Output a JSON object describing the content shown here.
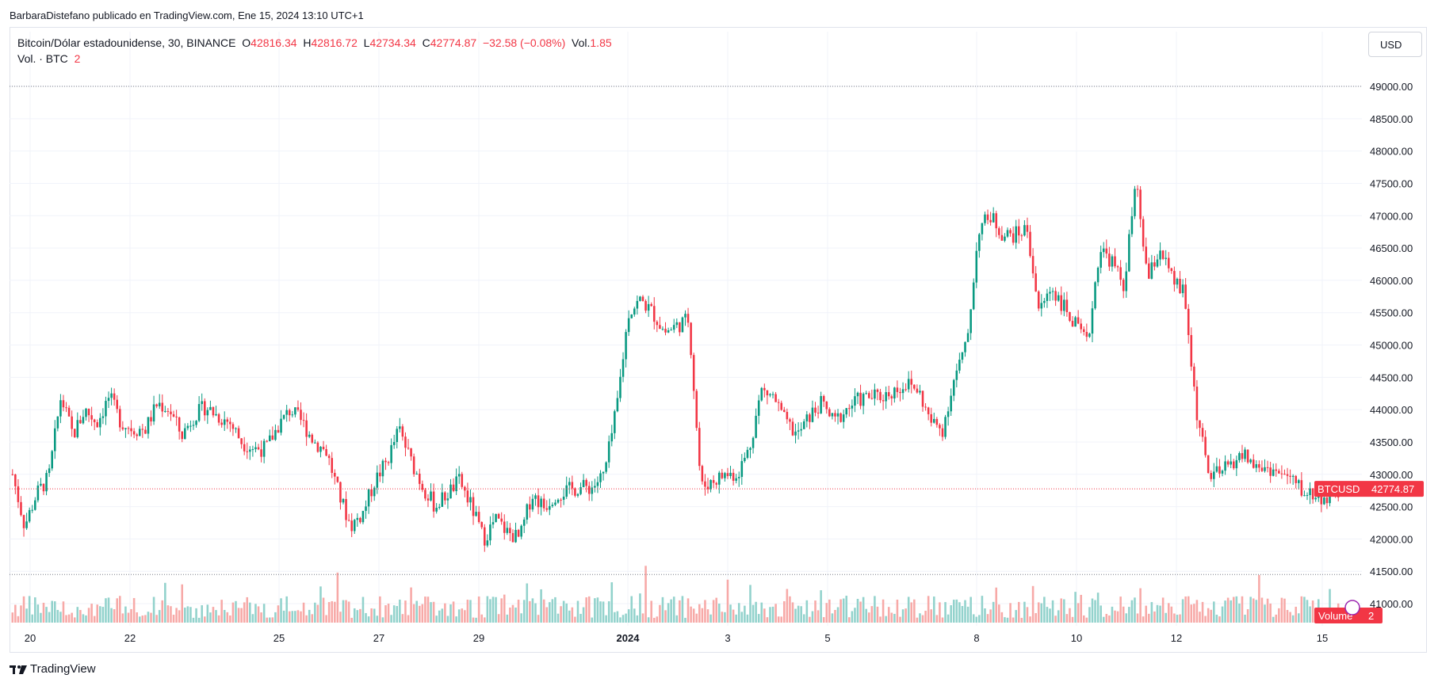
{
  "caption": "BarbaraDistefano publicado en TradingView.com, Ene 15, 2024 13:10 UTC+1",
  "legend": {
    "symbol": "Bitcoin/Dólar estadounidense, 30, BINANCE",
    "o_label": "O",
    "o_value": "42816.34",
    "h_label": "H",
    "h_value": "42816.72",
    "l_label": "L",
    "l_value": "42734.34",
    "c_label": "C",
    "c_value": "42774.87",
    "change": "−32.58 (−0.08%)",
    "vol_label": "Vol.",
    "vol_value": "1.85",
    "vol_series": "Vol. · BTC",
    "vol_series_value": "2"
  },
  "currency_button": "USD",
  "price_badge": {
    "symbol": "BTCUSD",
    "price": "42774.87"
  },
  "volume_badge": {
    "label": "Volume",
    "value": "2"
  },
  "footer_brand": "TradingView",
  "colors": {
    "up": "#089981",
    "down": "#f23645",
    "up_vol": "#92d2cc",
    "down_vol": "#f7a9a7"
  },
  "chart_data": {
    "type": "candlestick",
    "interval": "30",
    "y_ticks": [
      "49000.00",
      "48500.00",
      "48000.00",
      "47500.00",
      "47000.00",
      "46500.00",
      "46000.00",
      "45500.00",
      "45000.00",
      "44500.00",
      "44000.00",
      "43500.00",
      "43000.00",
      "42500.00",
      "42000.00",
      "41500.00",
      "41000.00"
    ],
    "x_ticks": [
      {
        "label": "20",
        "bold": false
      },
      {
        "label": "22",
        "bold": false
      },
      {
        "label": "25",
        "bold": false
      },
      {
        "label": "27",
        "bold": false
      },
      {
        "label": "29",
        "bold": false
      },
      {
        "label": "2024",
        "bold": true
      },
      {
        "label": "3",
        "bold": false
      },
      {
        "label": "5",
        "bold": false
      },
      {
        "label": "8",
        "bold": false
      },
      {
        "label": "10",
        "bold": false
      },
      {
        "label": "12",
        "bold": false
      },
      {
        "label": "15",
        "bold": false
      }
    ],
    "ylim": [
      41000,
      49000
    ],
    "high_line": 49000,
    "low_line": 41450,
    "last_price": 42774.87,
    "path_points": [
      [
        0,
        43000
      ],
      [
        1,
        42200
      ],
      [
        2,
        42700
      ],
      [
        3,
        42950
      ],
      [
        4,
        44200
      ],
      [
        5,
        43600
      ],
      [
        6,
        44000
      ],
      [
        7,
        43800
      ],
      [
        8,
        44200
      ],
      [
        9,
        43800
      ],
      [
        10,
        43700
      ],
      [
        11,
        43700
      ],
      [
        12,
        44100
      ],
      [
        13,
        44000
      ],
      [
        14,
        43600
      ],
      [
        15,
        43900
      ],
      [
        16,
        44050
      ],
      [
        17,
        43900
      ],
      [
        18,
        43800
      ],
      [
        19,
        43500
      ],
      [
        20,
        43400
      ],
      [
        21,
        43400
      ],
      [
        22,
        43750
      ],
      [
        23,
        44000
      ],
      [
        24,
        43800
      ],
      [
        25,
        43500
      ],
      [
        26,
        43350
      ],
      [
        27,
        42700
      ],
      [
        28,
        42200
      ],
      [
        29,
        42400
      ],
      [
        30,
        42900
      ],
      [
        31,
        43200
      ],
      [
        32,
        43700
      ],
      [
        33,
        43200
      ],
      [
        34,
        42800
      ],
      [
        35,
        42500
      ],
      [
        36,
        42700
      ],
      [
        37,
        42900
      ],
      [
        38,
        42500
      ],
      [
        39,
        42000
      ],
      [
        40,
        42300
      ],
      [
        41,
        42100
      ],
      [
        42,
        42000
      ],
      [
        43,
        42700
      ],
      [
        44,
        42500
      ],
      [
        45,
        42700
      ],
      [
        46,
        42750
      ],
      [
        47,
        42800
      ],
      [
        48,
        42800
      ],
      [
        49,
        43000
      ],
      [
        50,
        44000
      ],
      [
        51,
        45500
      ],
      [
        52,
        45700
      ],
      [
        53,
        45500
      ],
      [
        54,
        45200
      ],
      [
        55,
        45300
      ],
      [
        56,
        45400
      ],
      [
        57,
        42800
      ],
      [
        58,
        42900
      ],
      [
        59,
        43000
      ],
      [
        60,
        43000
      ],
      [
        61,
        43400
      ],
      [
        62,
        44300
      ],
      [
        63,
        44200
      ],
      [
        64,
        43800
      ],
      [
        65,
        43600
      ],
      [
        66,
        43900
      ],
      [
        67,
        44100
      ],
      [
        68,
        43800
      ],
      [
        69,
        44000
      ],
      [
        70,
        44150
      ],
      [
        71,
        44200
      ],
      [
        72,
        44200
      ],
      [
        73,
        44300
      ],
      [
        74,
        44400
      ],
      [
        75,
        44300
      ],
      [
        76,
        43800
      ],
      [
        77,
        43700
      ],
      [
        78,
        44500
      ],
      [
        79,
        45000
      ],
      [
        80,
        46800
      ],
      [
        81,
        47000
      ],
      [
        82,
        46700
      ],
      [
        83,
        46700
      ],
      [
        84,
        46800
      ],
      [
        85,
        45500
      ],
      [
        86,
        45900
      ],
      [
        87,
        45600
      ],
      [
        88,
        45300
      ],
      [
        89,
        45000
      ],
      [
        90,
        46500
      ],
      [
        91,
        46300
      ],
      [
        92,
        45900
      ],
      [
        93,
        47500
      ],
      [
        94,
        46000
      ],
      [
        95,
        46500
      ],
      [
        96,
        46000
      ],
      [
        97,
        45800
      ],
      [
        98,
        44000
      ],
      [
        99,
        43000
      ],
      [
        100,
        43000
      ],
      [
        101,
        43200
      ],
      [
        102,
        43300
      ],
      [
        103,
        43100
      ],
      [
        104,
        43100
      ],
      [
        105,
        43000
      ],
      [
        106,
        42900
      ],
      [
        107,
        42700
      ],
      [
        108,
        42700
      ],
      [
        109,
        42600
      ],
      [
        110,
        42775
      ]
    ],
    "total_points": 110
  }
}
